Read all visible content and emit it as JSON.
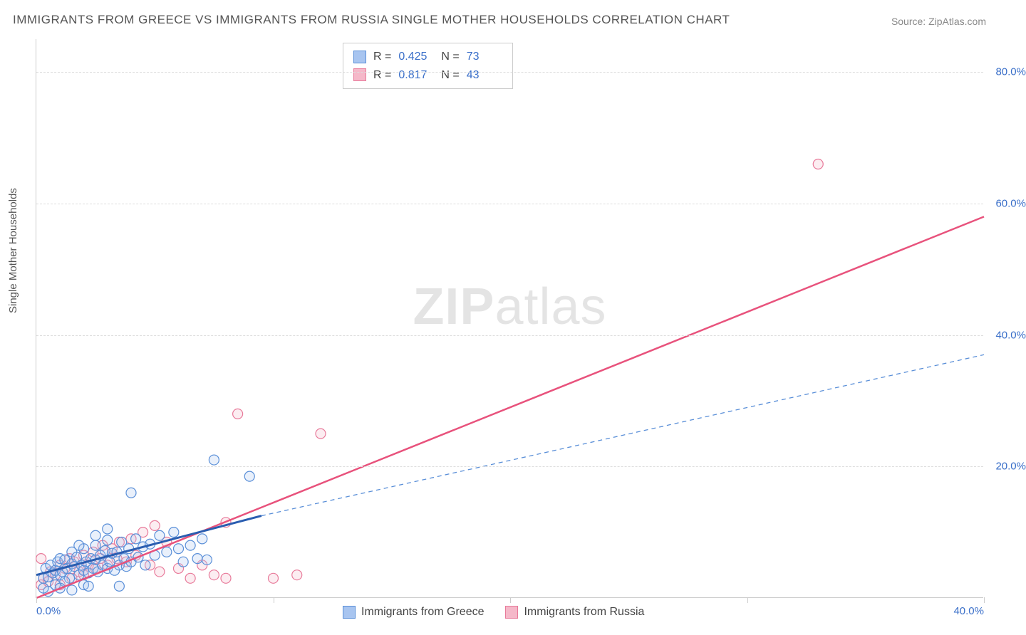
{
  "title": "IMMIGRANTS FROM GREECE VS IMMIGRANTS FROM RUSSIA SINGLE MOTHER HOUSEHOLDS CORRELATION CHART",
  "source": "Source: ZipAtlas.com",
  "ylabel": "Single Mother Households",
  "watermark_a": "ZIP",
  "watermark_b": "atlas",
  "chart": {
    "type": "scatter-with-regression",
    "background_color": "#ffffff",
    "grid_color": "#dddddd",
    "grid_dash": "4,4",
    "axis_color": "#cccccc",
    "tick_label_color": "#3a6fc9",
    "tick_fontsize": 15,
    "label_fontsize": 15,
    "xlim": [
      0,
      40
    ],
    "ylim": [
      0,
      85
    ],
    "x_ticks": [
      0,
      10,
      20,
      30,
      40
    ],
    "x_tick_labels": [
      "0.0%",
      "",
      "",
      "",
      "40.0%"
    ],
    "y_gridlines": [
      20,
      40,
      60,
      80
    ],
    "y_tick_labels": [
      "20.0%",
      "40.0%",
      "60.0%",
      "80.0%"
    ],
    "marker_radius": 7,
    "marker_fill_opacity": 0.25,
    "marker_stroke_width": 1.2,
    "series": {
      "greece": {
        "label": "Immigrants from Greece",
        "color_fill": "#a8c5f0",
        "color_stroke": "#5a8fd8",
        "R": "0.425",
        "N": "73",
        "regression": {
          "solid": {
            "x1": 0,
            "y1": 3.5,
            "x2": 9.5,
            "y2": 12.5,
            "width": 3,
            "color": "#2a5db0"
          },
          "dashed": {
            "x1": 9.5,
            "y1": 12.5,
            "x2": 40,
            "y2": 37,
            "width": 1.3,
            "color": "#5a8fd8",
            "dash": "6,5"
          }
        },
        "points": [
          [
            0.3,
            3.0
          ],
          [
            0.4,
            4.5
          ],
          [
            0.5,
            3.2
          ],
          [
            0.6,
            5.0
          ],
          [
            0.7,
            3.8
          ],
          [
            0.8,
            4.2
          ],
          [
            0.9,
            5.5
          ],
          [
            1.0,
            3.5
          ],
          [
            1.0,
            6.0
          ],
          [
            1.1,
            4.0
          ],
          [
            1.2,
            5.8
          ],
          [
            1.3,
            4.5
          ],
          [
            1.4,
            3.0
          ],
          [
            1.5,
            5.2
          ],
          [
            1.5,
            7.0
          ],
          [
            1.6,
            4.8
          ],
          [
            1.7,
            6.2
          ],
          [
            1.8,
            3.5
          ],
          [
            1.9,
            5.0
          ],
          [
            2.0,
            4.2
          ],
          [
            2.0,
            7.5
          ],
          [
            2.1,
            5.5
          ],
          [
            2.2,
            3.8
          ],
          [
            2.3,
            6.0
          ],
          [
            2.4,
            4.5
          ],
          [
            2.5,
            5.8
          ],
          [
            2.5,
            8.0
          ],
          [
            2.6,
            4.0
          ],
          [
            2.7,
            6.5
          ],
          [
            2.8,
            5.0
          ],
          [
            2.9,
            7.2
          ],
          [
            3.0,
            4.5
          ],
          [
            3.0,
            8.8
          ],
          [
            3.1,
            5.5
          ],
          [
            3.2,
            6.8
          ],
          [
            3.3,
            4.2
          ],
          [
            3.4,
            7.0
          ],
          [
            3.5,
            5.0
          ],
          [
            3.6,
            8.5
          ],
          [
            3.7,
            6.0
          ],
          [
            3.8,
            4.8
          ],
          [
            3.9,
            7.5
          ],
          [
            4.0,
            5.5
          ],
          [
            4.2,
            9.0
          ],
          [
            4.3,
            6.2
          ],
          [
            4.5,
            7.8
          ],
          [
            4.6,
            5.0
          ],
          [
            4.8,
            8.2
          ],
          [
            5.0,
            6.5
          ],
          [
            5.2,
            9.5
          ],
          [
            5.5,
            7.0
          ],
          [
            5.8,
            10.0
          ],
          [
            6.0,
            7.5
          ],
          [
            6.2,
            5.5
          ],
          [
            6.5,
            8.0
          ],
          [
            6.8,
            6.0
          ],
          [
            7.0,
            9.0
          ],
          [
            7.2,
            5.8
          ],
          [
            7.5,
            21.0
          ],
          [
            2.0,
            2.0
          ],
          [
            3.5,
            1.8
          ],
          [
            1.2,
            2.5
          ],
          [
            0.8,
            2.0
          ],
          [
            4.0,
            16.0
          ],
          [
            3.0,
            10.5
          ],
          [
            2.5,
            9.5
          ],
          [
            1.8,
            8.0
          ],
          [
            1.0,
            1.5
          ],
          [
            2.2,
            1.8
          ],
          [
            1.5,
            1.2
          ],
          [
            0.5,
            1.0
          ],
          [
            0.3,
            1.5
          ],
          [
            9.0,
            18.5
          ]
        ]
      },
      "russia": {
        "label": "Immigrants from Russia",
        "color_fill": "#f5b8c9",
        "color_stroke": "#e87a9a",
        "R": "0.817",
        "N": "43",
        "regression": {
          "solid": {
            "x1": 0,
            "y1": 0,
            "x2": 40,
            "y2": 58,
            "width": 2.5,
            "color": "#e8527c"
          }
        },
        "points": [
          [
            0.2,
            2.0
          ],
          [
            0.3,
            3.0
          ],
          [
            0.5,
            2.5
          ],
          [
            0.6,
            4.0
          ],
          [
            0.8,
            3.5
          ],
          [
            1.0,
            5.0
          ],
          [
            1.0,
            2.0
          ],
          [
            1.2,
            4.5
          ],
          [
            1.4,
            6.0
          ],
          [
            1.5,
            3.0
          ],
          [
            1.6,
            5.5
          ],
          [
            1.8,
            4.0
          ],
          [
            2.0,
            6.5
          ],
          [
            2.0,
            3.5
          ],
          [
            2.2,
            5.0
          ],
          [
            2.4,
            7.0
          ],
          [
            2.5,
            4.5
          ],
          [
            2.7,
            6.0
          ],
          [
            2.8,
            8.0
          ],
          [
            3.0,
            5.0
          ],
          [
            3.2,
            7.5
          ],
          [
            3.4,
            6.0
          ],
          [
            3.5,
            8.5
          ],
          [
            3.8,
            5.5
          ],
          [
            4.0,
            9.0
          ],
          [
            4.2,
            6.5
          ],
          [
            4.5,
            10.0
          ],
          [
            4.8,
            5.0
          ],
          [
            5.0,
            11.0
          ],
          [
            5.2,
            4.0
          ],
          [
            5.5,
            8.5
          ],
          [
            6.0,
            4.5
          ],
          [
            6.5,
            3.0
          ],
          [
            7.0,
            5.0
          ],
          [
            7.5,
            3.5
          ],
          [
            8.0,
            11.5
          ],
          [
            8.5,
            28.0
          ],
          [
            10.0,
            3.0
          ],
          [
            11.0,
            3.5
          ],
          [
            12.0,
            25.0
          ],
          [
            8.0,
            3.0
          ],
          [
            33.0,
            66.0
          ],
          [
            0.2,
            6.0
          ]
        ]
      }
    }
  },
  "stats_labels": {
    "R": "R =",
    "N": "N ="
  }
}
